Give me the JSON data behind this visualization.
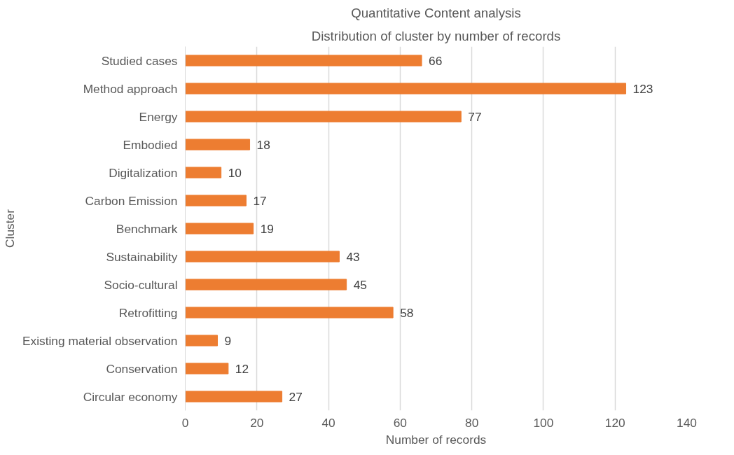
{
  "chart_data": {
    "type": "bar",
    "orientation": "horizontal",
    "title": "Quantitative Content analysis",
    "subtitle": "Distribution of cluster by number of records",
    "xlabel": "Number of records",
    "ylabel": "Cluster",
    "categories": [
      "Studied cases",
      "Method approach",
      "Energy",
      "Embodied",
      "Digitalization",
      "Carbon Emission",
      "Benchmark",
      "Sustainability",
      "Socio-cultural",
      "Retrofitting",
      "Existing material observation",
      "Conservation",
      "Circular economy"
    ],
    "values": [
      66,
      123,
      77,
      18,
      10,
      17,
      19,
      43,
      45,
      58,
      9,
      12,
      27
    ],
    "color": "#ed7d31",
    "xlim": [
      0,
      140
    ],
    "xticks": [
      0,
      20,
      40,
      60,
      80,
      100,
      120,
      140
    ],
    "grid": "x",
    "data_labels": true
  }
}
